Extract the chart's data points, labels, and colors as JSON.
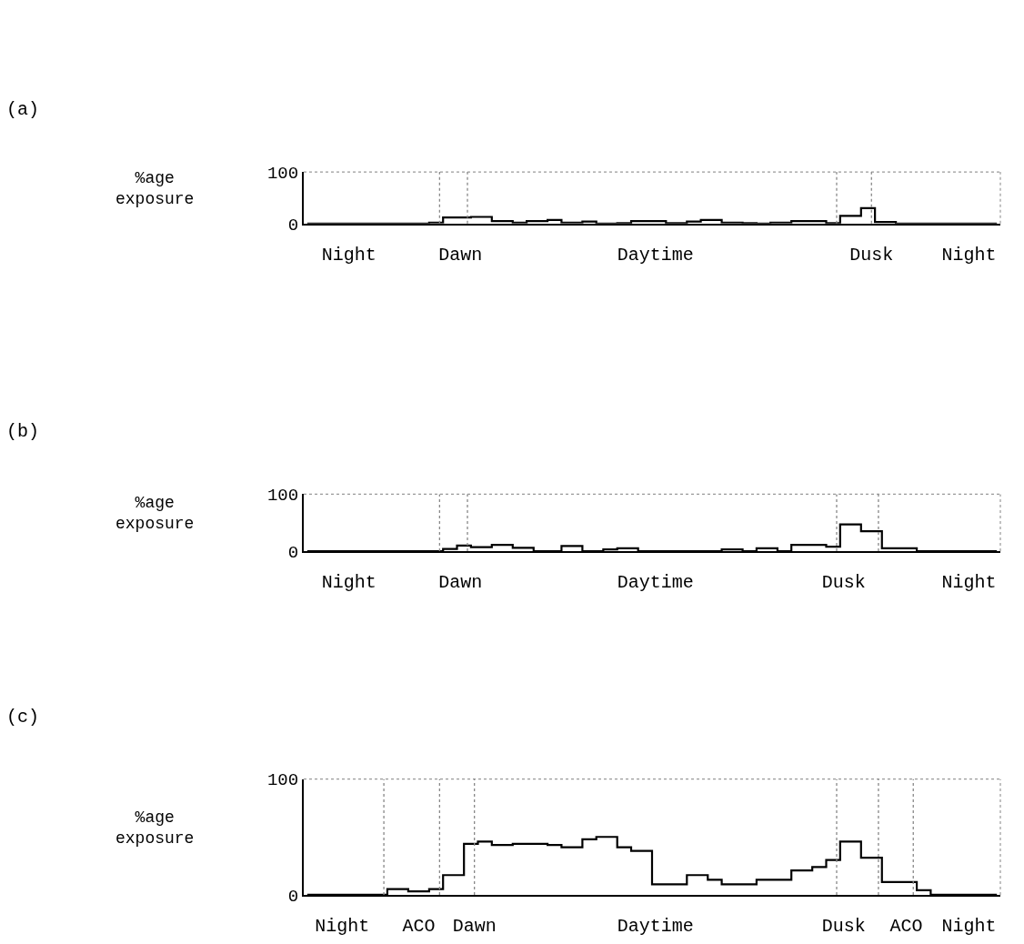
{
  "chart_data": [
    {
      "type": "step",
      "annotations": [
        "(a)"
      ],
      "ylabel": "%age\nexposure",
      "color": "#000000",
      "line_style": "solid",
      "marker": "none",
      "categories": [
        null,
        null,
        null,
        null,
        null,
        null,
        "Night",
        null,
        null,
        null,
        null,
        null,
        null,
        null,
        null,
        null,
        null,
        null,
        null,
        null,
        null,
        null,
        "Dawn",
        null,
        null,
        null,
        null,
        null,
        null,
        null,
        null,
        null,
        null,
        null,
        null,
        null,
        null,
        null,
        null,
        null,
        null,
        null,
        null,
        null,
        null,
        null,
        null,
        null,
        null,
        null,
        "Daytime",
        null,
        null,
        null,
        null,
        null,
        null,
        null,
        null,
        null,
        null,
        null,
        null,
        null,
        null,
        null,
        null,
        null,
        null,
        null,
        null,
        null,
        null,
        null,
        null,
        null,
        null,
        null,
        null,
        null,
        null,
        "Dusk",
        null,
        null,
        null,
        null,
        null,
        null,
        null,
        null,
        null,
        null,
        null,
        null,
        null,
        "Night",
        null,
        null,
        null,
        null
      ],
      "values": [
        0,
        0,
        0,
        0,
        0,
        0,
        0,
        0,
        0,
        0,
        0,
        0,
        0,
        0,
        0,
        0,
        0,
        0,
        2,
        2,
        12,
        12,
        12,
        12,
        13,
        13,
        13,
        5,
        5,
        5,
        2,
        2,
        5,
        5,
        5,
        7,
        7,
        2,
        2,
        2,
        4,
        4,
        0,
        0,
        0,
        1,
        1,
        5,
        5,
        5,
        5,
        5,
        1,
        1,
        1,
        4,
        4,
        7,
        7,
        7,
        2,
        2,
        2,
        1,
        1,
        0,
        0,
        2,
        2,
        2,
        5,
        5,
        5,
        5,
        5,
        1,
        1,
        15,
        15,
        15,
        30,
        30,
        3,
        3,
        3,
        0,
        0,
        0,
        0,
        0,
        0,
        0,
        0,
        0,
        0,
        0,
        0,
        0,
        0,
        0
      ],
      "ylim": [
        0,
        100
      ],
      "yticks": [
        0,
        100
      ]
    },
    {
      "type": "step",
      "annotations": [
        "(b)"
      ],
      "ylabel": "%age\nexposure",
      "color": "#000000",
      "line_style": "solid",
      "marker": "none",
      "categories": [
        null,
        null,
        null,
        null,
        null,
        null,
        "Night",
        null,
        null,
        null,
        null,
        null,
        null,
        null,
        null,
        null,
        null,
        null,
        null,
        null,
        null,
        null,
        "Dawn",
        null,
        null,
        null,
        null,
        null,
        null,
        null,
        null,
        null,
        null,
        null,
        null,
        null,
        null,
        null,
        null,
        null,
        null,
        null,
        null,
        null,
        null,
        null,
        null,
        null,
        null,
        null,
        "Daytime",
        null,
        null,
        null,
        null,
        null,
        null,
        null,
        null,
        null,
        null,
        null,
        null,
        null,
        null,
        null,
        null,
        null,
        null,
        null,
        null,
        null,
        null,
        null,
        null,
        null,
        null,
        "Dusk",
        null,
        null,
        null,
        null,
        null,
        null,
        null,
        null,
        null,
        null,
        null,
        null,
        null,
        null,
        null,
        null,
        null,
        "Night",
        null,
        null,
        null,
        null
      ],
      "values": [
        0,
        0,
        0,
        0,
        0,
        0,
        0,
        0,
        0,
        0,
        0,
        0,
        0,
        0,
        0,
        0,
        0,
        0,
        0,
        0,
        4,
        4,
        10,
        10,
        7,
        7,
        7,
        11,
        11,
        11,
        6,
        6,
        6,
        0,
        0,
        0,
        0,
        9,
        9,
        9,
        0,
        0,
        0,
        3,
        3,
        5,
        5,
        5,
        0,
        0,
        0,
        0,
        0,
        0,
        0,
        0,
        0,
        0,
        0,
        0,
        3,
        3,
        3,
        0,
        0,
        5,
        5,
        5,
        0,
        0,
        11,
        11,
        11,
        11,
        11,
        8,
        8,
        47,
        47,
        47,
        35,
        35,
        35,
        5,
        5,
        5,
        5,
        5,
        0,
        0,
        0,
        0,
        0,
        0,
        0,
        0,
        0,
        0,
        0,
        0
      ],
      "ylim": [
        0,
        100
      ],
      "yticks": [
        0,
        100
      ]
    },
    {
      "type": "step",
      "annotations": [
        "(c)"
      ],
      "ylabel": "%age\nexposure",
      "color": "#000000",
      "line_style": "solid",
      "marker": "none",
      "categories": [
        null,
        null,
        null,
        null,
        null,
        "Night",
        null,
        null,
        null,
        null,
        null,
        null,
        null,
        null,
        null,
        null,
        "ACO",
        null,
        null,
        null,
        null,
        null,
        null,
        null,
        "Dawn",
        null,
        null,
        null,
        null,
        null,
        null,
        null,
        null,
        null,
        null,
        null,
        null,
        null,
        null,
        null,
        null,
        null,
        null,
        null,
        null,
        null,
        null,
        null,
        null,
        null,
        "Daytime",
        null,
        null,
        null,
        null,
        null,
        null,
        null,
        null,
        null,
        null,
        null,
        null,
        null,
        null,
        null,
        null,
        null,
        null,
        null,
        null,
        null,
        null,
        null,
        null,
        null,
        null,
        "Dusk",
        null,
        null,
        null,
        null,
        null,
        null,
        null,
        null,
        "ACO",
        null,
        null,
        null,
        null,
        null,
        null,
        null,
        null,
        "Night",
        null,
        null,
        null,
        null
      ],
      "values": [
        0,
        0,
        0,
        0,
        0,
        0,
        0,
        0,
        0,
        0,
        0,
        0,
        5,
        5,
        5,
        3,
        3,
        3,
        5,
        5,
        17,
        17,
        17,
        44,
        44,
        46,
        46,
        43,
        43,
        43,
        44,
        44,
        44,
        44,
        44,
        43,
        43,
        41,
        41,
        41,
        48,
        48,
        50,
        50,
        50,
        41,
        41,
        38,
        38,
        38,
        9,
        9,
        9,
        9,
        9,
        17,
        17,
        17,
        13,
        13,
        9,
        9,
        9,
        9,
        9,
        13,
        13,
        13,
        13,
        13,
        21,
        21,
        21,
        24,
        24,
        30,
        30,
        46,
        46,
        46,
        32,
        32,
        32,
        11,
        11,
        11,
        11,
        11,
        4,
        4,
        0,
        0,
        0,
        0,
        0,
        0,
        0,
        0,
        0,
        0
      ],
      "ylim": [
        0,
        100
      ],
      "yticks": [
        0,
        100
      ]
    }
  ]
}
